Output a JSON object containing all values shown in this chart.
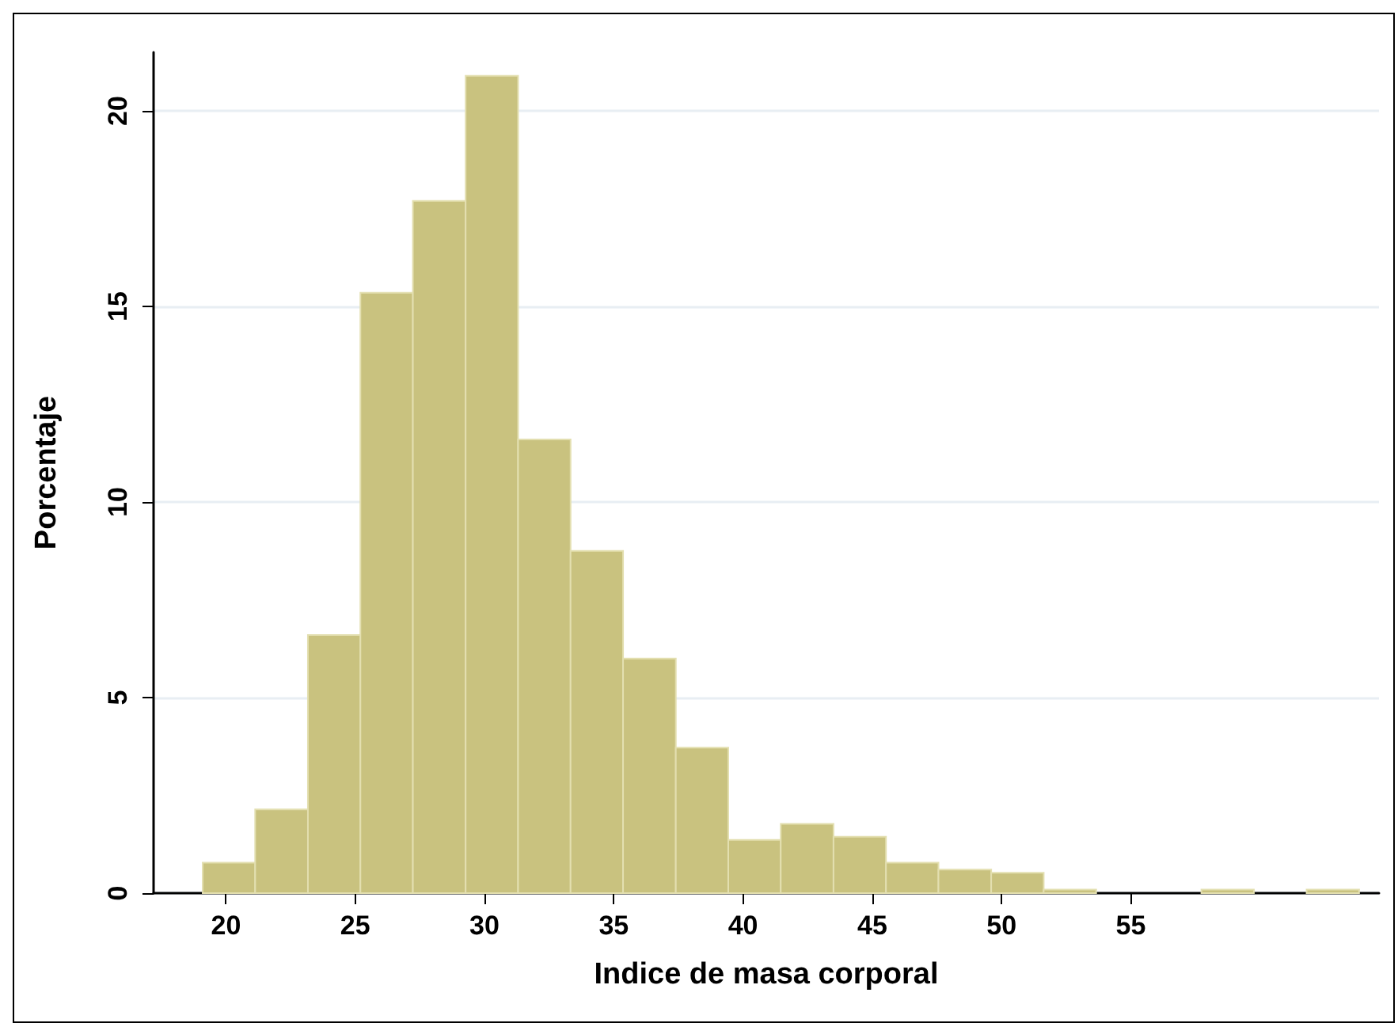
{
  "chart_data": {
    "type": "histogram",
    "xlabel": "Indice de masa corporal",
    "ylabel": "Porcentaje",
    "bins": [
      19.1,
      21.13,
      23.17,
      25.2,
      27.23,
      29.27,
      31.3,
      33.33,
      35.36,
      37.4,
      39.43,
      41.46,
      43.5,
      45.53,
      47.56,
      49.6,
      51.63,
      53.66,
      55.7,
      57.73,
      59.76,
      61.8,
      63.83
    ],
    "values": [
      0.78,
      2.14,
      6.6,
      15.35,
      17.7,
      20.9,
      11.6,
      8.75,
      6.0,
      3.72,
      1.36,
      1.77,
      1.44,
      0.78,
      0.6,
      0.52,
      0.09,
      0,
      0,
      0.09,
      0,
      0.09
    ],
    "color": "#c9c27f",
    "xlim": [
      17.2,
      64.6
    ],
    "xticks": [
      20,
      25,
      30,
      35,
      40,
      45,
      50,
      55
    ],
    "ylim": [
      0,
      21.5
    ],
    "yticks": [
      0,
      5,
      10,
      15,
      20
    ],
    "grid": "y"
  }
}
